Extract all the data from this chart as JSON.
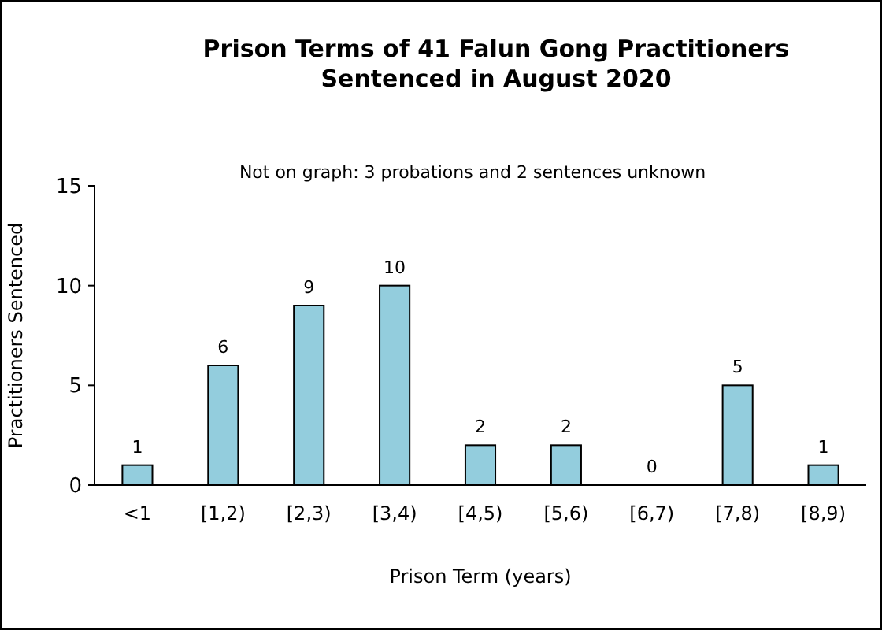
{
  "chart_data": {
    "type": "bar",
    "title": "Prison Terms of 41 Falun Gong Practitioners Sentenced in August 2020",
    "annotations": [
      "Not on graph: 3 probations and 2 sentences unknown"
    ],
    "xlabel": "Prison Term (years)",
    "ylabel": "Practitioners Sentenced",
    "categories": [
      "<1",
      "[1,2)",
      "[2,3)",
      "[3,4)",
      "[4,5)",
      "[5,6)",
      "[6,7)",
      "[7,8)",
      "[8,9)"
    ],
    "values": [
      1,
      6,
      9,
      10,
      2,
      2,
      0,
      5,
      1
    ],
    "color": "#93cddd",
    "ylim": [
      0,
      15
    ],
    "yticks": [
      0,
      5,
      10,
      15
    ],
    "data_labels": true,
    "grid": false
  }
}
